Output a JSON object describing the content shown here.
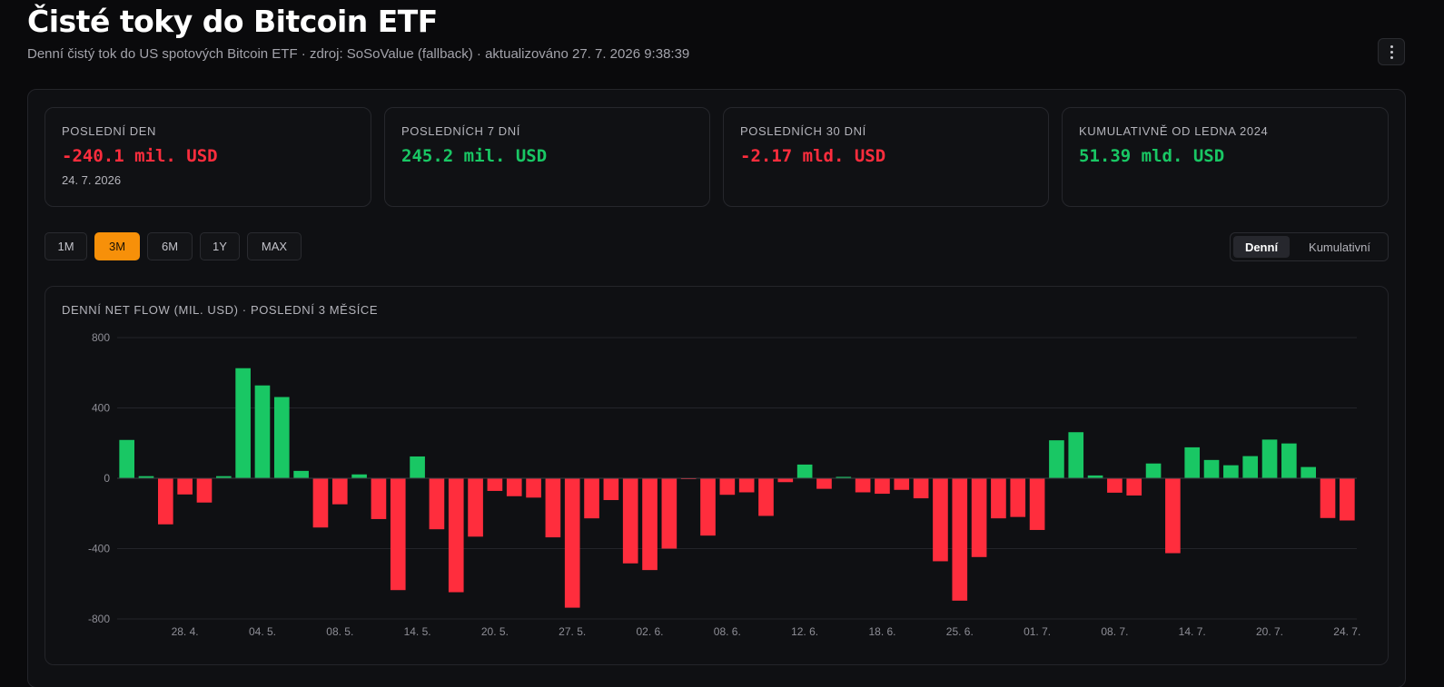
{
  "header": {
    "title": "Čisté toky do Bitcoin ETF",
    "subtitle": "Denní čistý tok do US spotových Bitcoin ETF · zdroj: SoSoValue (fallback) · aktualizováno 27. 7. 2026 9:38:39",
    "menu_icon": "kebab-menu-icon"
  },
  "stats": [
    {
      "label": "POSLEDNÍ DEN",
      "value": "-240.1 mil. USD",
      "sub": "24. 7. 2026",
      "tone": "negative"
    },
    {
      "label": "POSLEDNÍCH 7 DNÍ",
      "value": "245.2 mil. USD",
      "sub": "",
      "tone": "positive"
    },
    {
      "label": "POSLEDNÍCH 30 DNÍ",
      "value": "-2.17 mld. USD",
      "sub": "",
      "tone": "negative"
    },
    {
      "label": "KUMULATIVNĚ OD LEDNA 2024",
      "value": "51.39 mld. USD",
      "sub": "",
      "tone": "positive"
    }
  ],
  "ranges": [
    {
      "label": "1M",
      "active": false
    },
    {
      "label": "3M",
      "active": true
    },
    {
      "label": "6M",
      "active": false
    },
    {
      "label": "1Y",
      "active": false
    },
    {
      "label": "MAX",
      "active": false
    }
  ],
  "modes": [
    {
      "label": "Denní",
      "active": true
    },
    {
      "label": "Kumulativní",
      "active": false
    }
  ],
  "colors": {
    "positive": "#19c764",
    "negative": "#ff2d3d",
    "accent": "#f79009",
    "grid": "#23242a",
    "axis_text": "#8e8e96"
  },
  "chart_data": {
    "type": "bar",
    "title": "DENNÍ NET FLOW (MIL. USD) · POSLEDNÍ 3 MĚSÍCE",
    "xlabel": "",
    "ylabel": "",
    "ylim": [
      -800,
      800
    ],
    "yticks": [
      800,
      400,
      0,
      -400,
      -800
    ],
    "grid": true,
    "x_tick_labels": [
      "28. 4.",
      "04. 5.",
      "08. 5.",
      "14. 5.",
      "20. 5.",
      "27. 5.",
      "02. 6.",
      "08. 6.",
      "12. 6.",
      "18. 6.",
      "25. 6.",
      "01. 7.",
      "08. 7.",
      "14. 7.",
      "20. 7.",
      "24. 7."
    ],
    "x_tick_positions": [
      3.5,
      7.5,
      11.5,
      15.5,
      19.5,
      23.5,
      27.5,
      31.5,
      35.5,
      39.5,
      43.5,
      47.5,
      51.5,
      55.5,
      59.5,
      63.5
    ],
    "values": [
      218,
      12,
      -262,
      -92,
      -138,
      12,
      626,
      528,
      462,
      42,
      -280,
      -148,
      22,
      -232,
      -636,
      124,
      -290,
      -648,
      -332,
      -72,
      -102,
      -110,
      -336,
      -736,
      -228,
      -124,
      -484,
      -522,
      -400,
      -2,
      -326,
      -94,
      -80,
      -214,
      -22,
      78,
      -60,
      8,
      -80,
      -88,
      -66,
      -114,
      -472,
      -696,
      -448,
      -228,
      -220,
      -294,
      216,
      262,
      16,
      -82,
      -98,
      84,
      -426,
      176,
      104,
      74,
      126,
      220,
      198,
      64,
      -226,
      -240
    ]
  }
}
